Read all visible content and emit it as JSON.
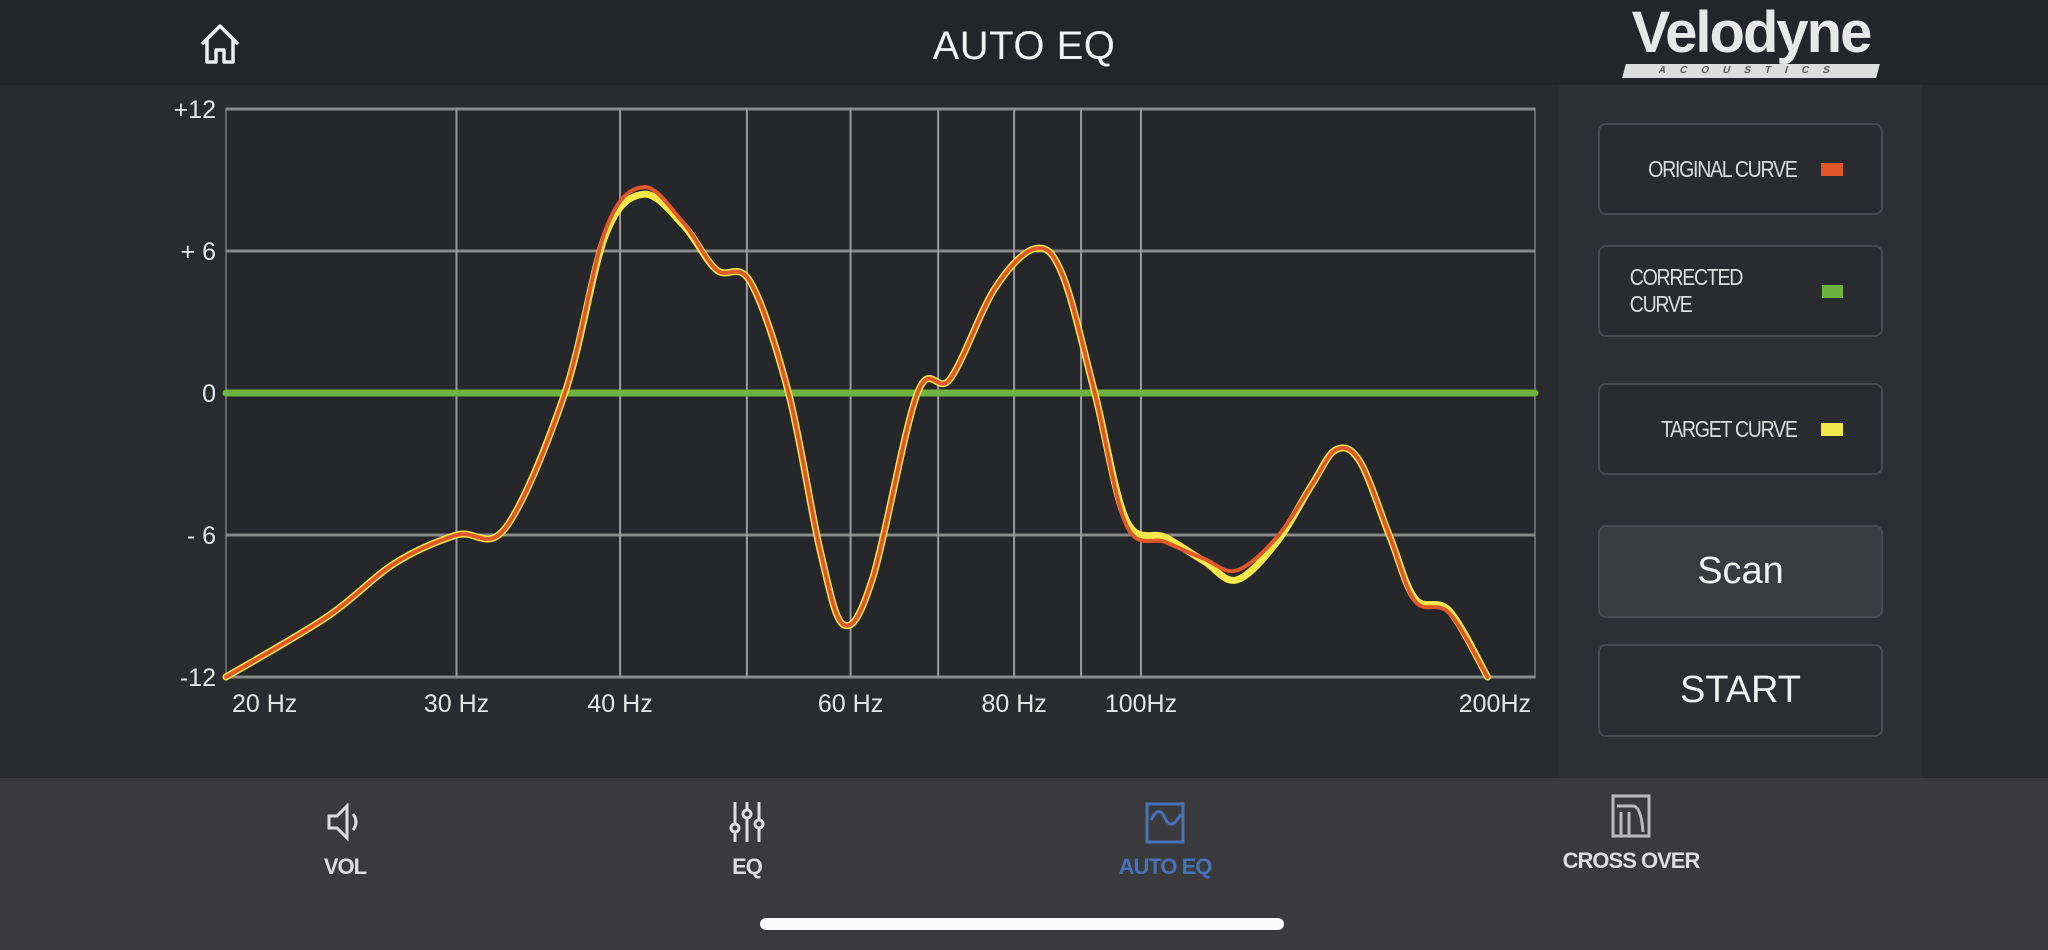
{
  "header": {
    "title": "AUTO EQ",
    "home_icon": "home-icon",
    "logo_text": "Velodyne",
    "logo_subtext": "ACOUSTICS"
  },
  "legend": [
    {
      "label": "ORIGINAL CURVE",
      "color": "#e2572a"
    },
    {
      "label": "CORRECTED CURVE",
      "color": "#6cb33f"
    },
    {
      "label": "TARGET CURVE",
      "color": "#f2e84a"
    }
  ],
  "actions": {
    "scan": "Scan",
    "start": "START"
  },
  "nav": [
    {
      "label": "VOL",
      "icon": "speaker-icon",
      "active": false
    },
    {
      "label": "EQ",
      "icon": "sliders-icon",
      "active": false
    },
    {
      "label": "AUTO EQ",
      "icon": "auto-eq-icon",
      "active": true
    },
    {
      "label": "CROSS OVER",
      "icon": "crossover-icon",
      "active": false
    }
  ],
  "chart_data": {
    "type": "line",
    "xscale": "log",
    "xlim": [
      20,
      200
    ],
    "ylim": [
      -12,
      12
    ],
    "grid": true,
    "x_gridlines": [
      30,
      40,
      50,
      60,
      70,
      80,
      90,
      100
    ],
    "y_ticks": [
      {
        "value": 12,
        "label": "+12"
      },
      {
        "value": 6,
        "label": "+ 6"
      },
      {
        "value": 0,
        "label": "0"
      },
      {
        "value": -6,
        "label": "- 6"
      },
      {
        "value": -12,
        "label": "-12"
      }
    ],
    "x_ticks": [
      {
        "value": 20,
        "label": "20 Hz"
      },
      {
        "value": 30,
        "label": "30 Hz"
      },
      {
        "value": 40,
        "label": "40 Hz"
      },
      {
        "value": 60,
        "label": "60 Hz"
      },
      {
        "value": 80,
        "label": "80 Hz"
      },
      {
        "value": 100,
        "label": "100Hz"
      },
      {
        "value": 200,
        "label": "200Hz"
      }
    ],
    "series": [
      {
        "name": "TARGET CURVE",
        "color": "#f2e84a",
        "x": [
          20,
          23.9,
          26.9,
          30,
          32.7,
          36.3,
          39,
          41.7,
          44.7,
          47.4,
          50.3,
          53.8,
          56.9,
          59.3,
          62.4,
          67.5,
          71.5,
          77.3,
          83,
          87.1,
          92.2,
          97.5,
          104.4,
          111.7,
          118.3,
          127,
          135,
          140.9,
          147,
          155,
          162,
          172,
          184
        ],
        "y": [
          -12,
          -9.45,
          -7.2,
          -6,
          -5.7,
          0,
          6.7,
          8.4,
          7.1,
          5.2,
          4.7,
          0,
          -6.7,
          -9.8,
          -7.8,
          0,
          0.6,
          4.4,
          6.1,
          5,
          0,
          -5.4,
          -6.1,
          -7.1,
          -7.9,
          -6.3,
          -3.9,
          -2.4,
          -2.9,
          -6.1,
          -8.7,
          -9.2,
          -12
        ]
      },
      {
        "name": "ORIGINAL CURVE",
        "color": "#e2572a",
        "x": [
          20,
          23.9,
          26.9,
          30,
          32.7,
          36.3,
          39,
          41.7,
          44.7,
          47.4,
          50.3,
          53.8,
          56.9,
          59.3,
          62.4,
          67.5,
          71.5,
          77.3,
          83,
          87.1,
          92.2,
          97.5,
          104.4,
          111.7,
          118.3,
          127,
          135,
          140.9,
          147,
          155,
          162,
          172,
          184
        ],
        "y": [
          -12,
          -9.45,
          -7.2,
          -6,
          -5.7,
          0,
          6.9,
          8.7,
          7.2,
          5.2,
          4.7,
          0,
          -6.7,
          -9.8,
          -7.8,
          0,
          0.6,
          4.4,
          6.1,
          5,
          0,
          -5.6,
          -6.3,
          -7,
          -7.5,
          -6.1,
          -3.9,
          -2.4,
          -2.9,
          -6.1,
          -8.8,
          -9.3,
          -12
        ]
      },
      {
        "name": "CORRECTED CURVE",
        "color": "#6cb33f",
        "x": [
          20,
          200
        ],
        "y": [
          0,
          0
        ]
      }
    ]
  }
}
